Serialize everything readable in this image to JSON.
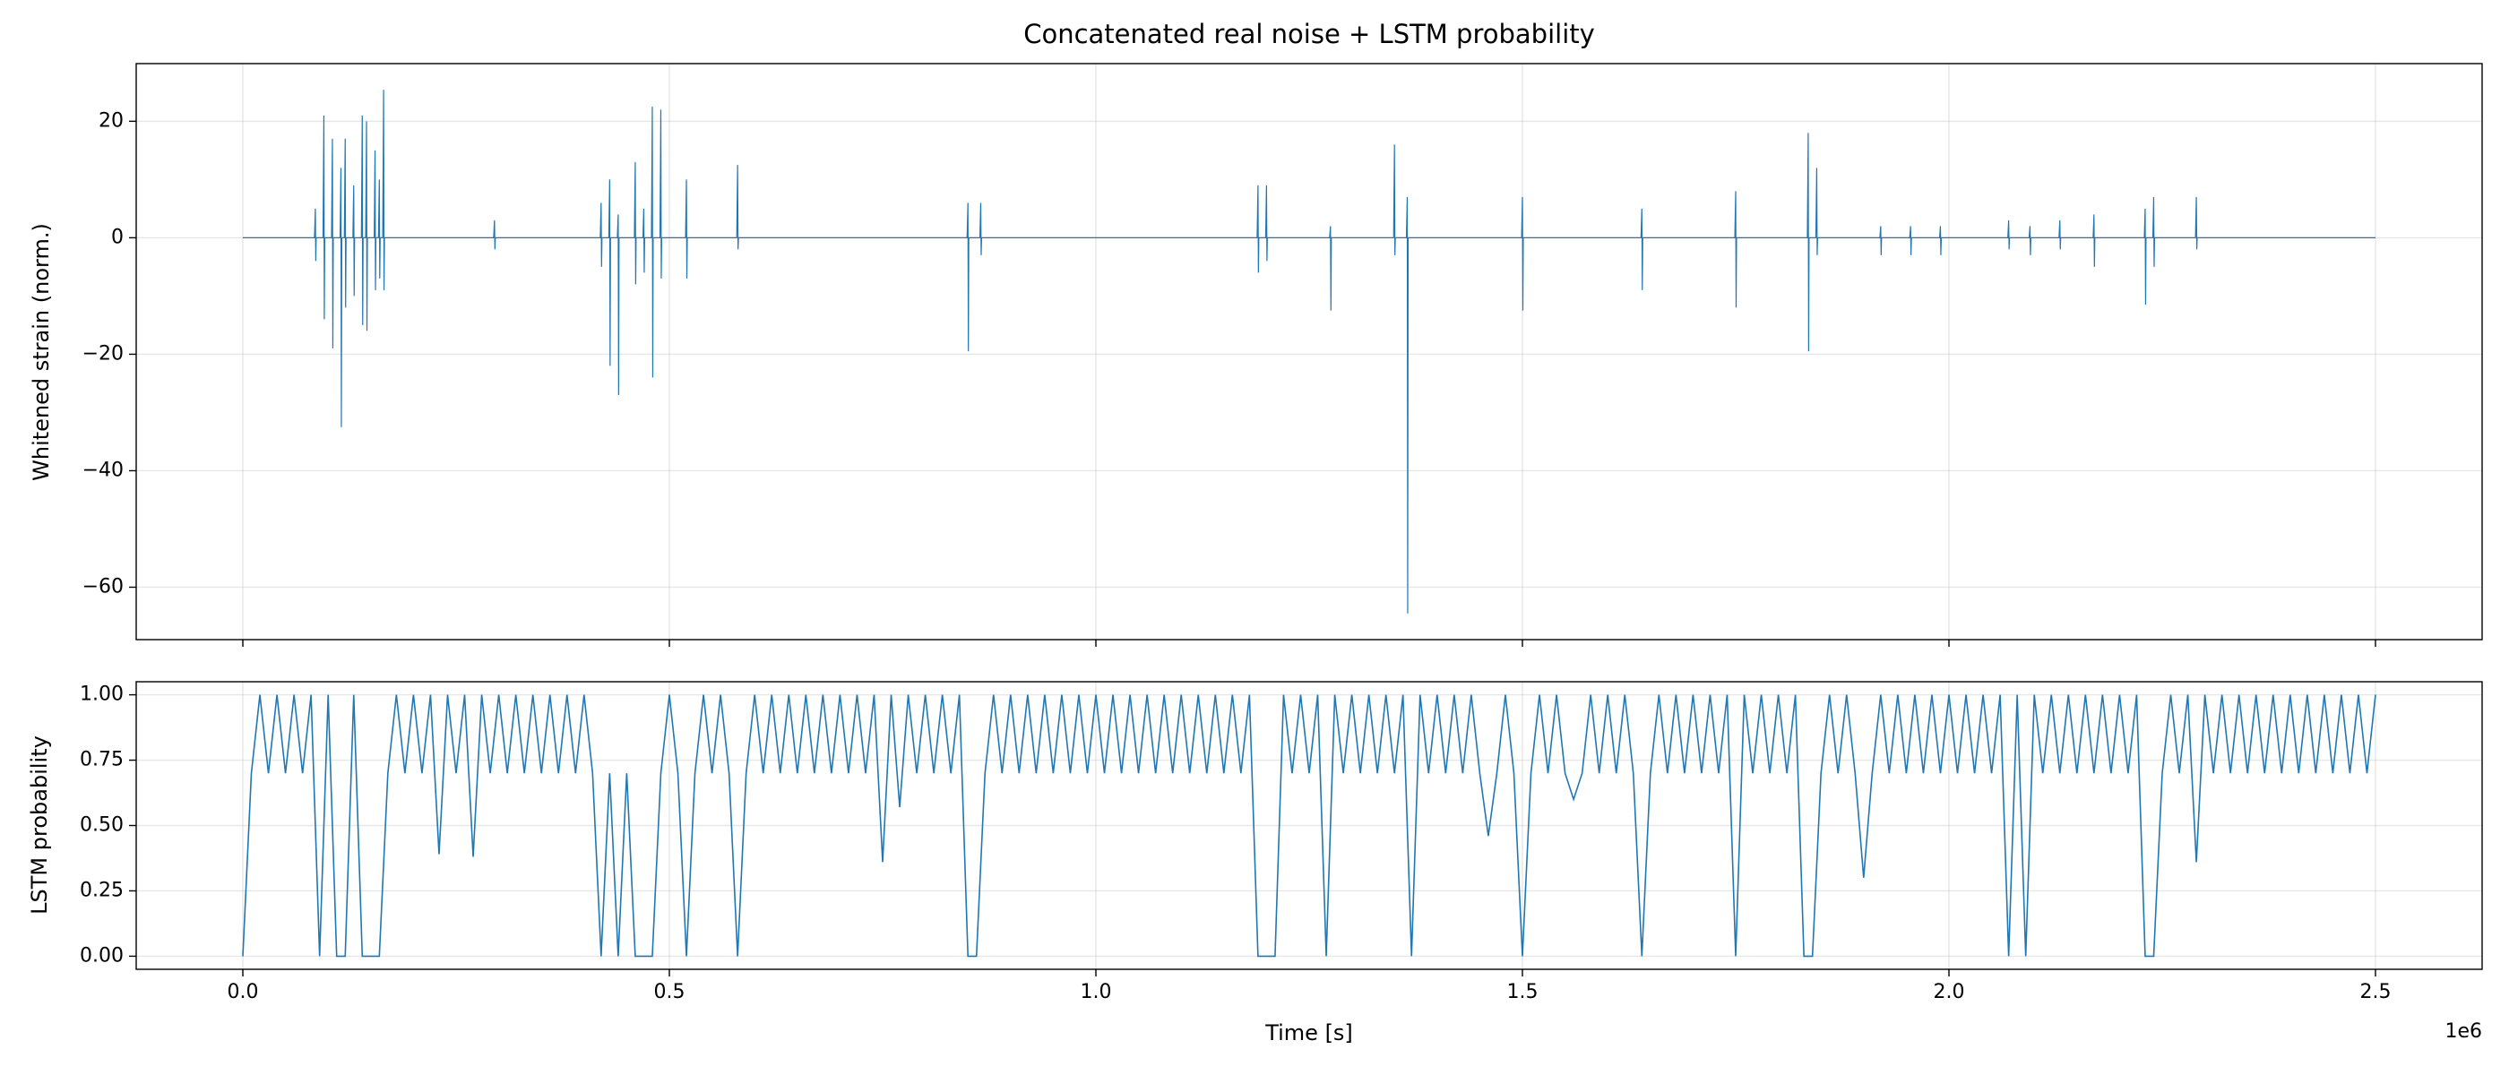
{
  "chart_data": [
    {
      "type": "line",
      "title": "Concatenated real noise + LSTM probability",
      "ylabel": "Whitened strain (norm.)",
      "xlim": [
        -125000,
        2625000
      ],
      "ylim": [
        -69,
        29.9
      ],
      "yticks": [
        {
          "value": -60,
          "label": "−60"
        },
        {
          "value": -40,
          "label": "−40"
        },
        {
          "value": -20,
          "label": "−20"
        },
        0,
        20
      ],
      "grid": true,
      "color": "#1f77b4",
      "x": [
        0,
        84000,
        85000,
        85500,
        86000,
        94000,
        95000,
        95500,
        96000,
        104000,
        105000,
        105500,
        106000,
        114000,
        115000,
        115500,
        116000,
        119000,
        120000,
        120500,
        121000,
        129000,
        130000,
        130500,
        131000,
        139000,
        140000,
        140500,
        141000,
        144000,
        145000,
        145500,
        146000,
        154000,
        155000,
        155500,
        156000,
        159000,
        160000,
        160500,
        161000,
        164000,
        165000,
        165500,
        166000,
        294000,
        295000,
        295500,
        296000,
        419000,
        420000,
        420500,
        421000,
        429000,
        430000,
        430500,
        431000,
        439000,
        440000,
        440500,
        441000,
        459000,
        460000,
        460500,
        461000,
        469000,
        470000,
        470500,
        471000,
        479000,
        480000,
        480500,
        481000,
        489000,
        490000,
        490500,
        491000,
        519000,
        520000,
        520500,
        521000,
        579000,
        580000,
        580500,
        581000,
        849000,
        850000,
        850500,
        851000,
        864000,
        865000,
        865500,
        866000,
        1189000,
        1190000,
        1190500,
        1191000,
        1199000,
        1200000,
        1200500,
        1201000,
        1274000,
        1275000,
        1275500,
        1276000,
        1349000,
        1350000,
        1350500,
        1351000,
        1364000,
        1365000,
        1365500,
        1366000,
        1499000,
        1500000,
        1500500,
        1501000,
        1639000,
        1640000,
        1640500,
        1641000,
        1749000,
        1750000,
        1750500,
        1751000,
        1834000,
        1835000,
        1835500,
        1836000,
        1844000,
        1845000,
        1845500,
        1846000,
        1919000,
        1920000,
        1920500,
        1921000,
        1954000,
        1955000,
        1955500,
        1956000,
        1989000,
        1990000,
        1990500,
        1991000,
        2069000,
        2070000,
        2070500,
        2071000,
        2094000,
        2095000,
        2095500,
        2096000,
        2129000,
        2130000,
        2130500,
        2131000,
        2169000,
        2170000,
        2170500,
        2171000,
        2229000,
        2230000,
        2230500,
        2231000,
        2239000,
        2240000,
        2240500,
        2241000,
        2289000,
        2290000,
        2290500,
        2291000,
        2500000
      ],
      "values": [
        0,
        0,
        5,
        -4,
        0,
        0,
        21,
        -14,
        0,
        0,
        17,
        -19,
        0,
        0,
        12,
        -32.5,
        0,
        0,
        17,
        -12,
        0,
        0,
        9,
        -10,
        0,
        0,
        21,
        -15,
        0,
        0,
        20,
        -16,
        0,
        0,
        15,
        -9,
        0,
        0,
        10,
        -7,
        0,
        0,
        25.4,
        -9,
        0,
        0,
        3,
        -2,
        0,
        0,
        6,
        -5,
        0,
        0,
        10,
        -22,
        0,
        0,
        4,
        -27,
        0,
        0,
        13,
        -8,
        0,
        0,
        5,
        -6,
        0,
        0,
        22.5,
        -24,
        0,
        0,
        22,
        -7,
        0,
        0,
        10,
        -7,
        0,
        0,
        12.5,
        -2,
        0,
        0,
        6,
        -19.5,
        0,
        0,
        6,
        -3,
        0,
        0,
        9,
        -6,
        0,
        0,
        9,
        -4,
        0,
        0,
        2,
        -12.5,
        0,
        0,
        16,
        -3,
        0,
        0,
        7,
        -64.5,
        0,
        0,
        7,
        -12.5,
        0,
        0,
        5,
        -9,
        0,
        0,
        8,
        -12,
        0,
        0,
        18,
        -19.5,
        0,
        0,
        12,
        -3,
        0,
        0,
        2,
        -3,
        0,
        0,
        2,
        -3,
        0,
        0,
        2,
        -3,
        0,
        0,
        3,
        -2,
        0,
        0,
        2,
        -3,
        0,
        0,
        3,
        -2,
        0,
        0,
        4,
        -5,
        0,
        0,
        5,
        -11.5,
        0,
        0,
        7,
        -5,
        0,
        0,
        7,
        -2,
        0,
        0
      ]
    },
    {
      "type": "line",
      "ylabel": "LSTM probability",
      "xlabel": "Time [s]",
      "x_offset_label": "1e6",
      "xlim": [
        -125000,
        2625000
      ],
      "ylim": [
        -0.05,
        1.05
      ],
      "xticks": [
        {
          "value": 0,
          "label": "0.0"
        },
        {
          "value": 500000,
          "label": "0.5"
        },
        {
          "value": 1000000,
          "label": "1.0"
        },
        {
          "value": 1500000,
          "label": "1.5"
        },
        {
          "value": 2000000,
          "label": "2.0"
        },
        {
          "value": 2500000,
          "label": "2.5"
        }
      ],
      "yticks": [
        {
          "value": 0,
          "label": "0.00"
        },
        {
          "value": 0.25,
          "label": "0.25"
        },
        {
          "value": 0.5,
          "label": "0.50"
        },
        {
          "value": 0.75,
          "label": "0.75"
        },
        {
          "value": 1,
          "label": "1.00"
        }
      ],
      "grid": true,
      "color": "#1f77b4",
      "x": [
        0,
        10000,
        20000,
        30000,
        40000,
        50000,
        60000,
        70000,
        80000,
        90000,
        100000,
        110000,
        120000,
        130000,
        140000,
        150000,
        160000,
        170000,
        180000,
        190000,
        200000,
        210000,
        220000,
        230000,
        240000,
        250000,
        260000,
        270000,
        280000,
        290000,
        300000,
        310000,
        320000,
        330000,
        340000,
        350000,
        360000,
        370000,
        380000,
        390000,
        400000,
        410000,
        420000,
        430000,
        440000,
        450000,
        460000,
        470000,
        480000,
        490000,
        500000,
        510000,
        520000,
        530000,
        540000,
        550000,
        560000,
        570000,
        580000,
        590000,
        600000,
        610000,
        620000,
        630000,
        640000,
        650000,
        660000,
        670000,
        680000,
        690000,
        700000,
        710000,
        720000,
        730000,
        740000,
        750000,
        760000,
        770000,
        780000,
        790000,
        800000,
        810000,
        820000,
        830000,
        840000,
        850000,
        860000,
        870000,
        880000,
        890000,
        900000,
        910000,
        920000,
        930000,
        940000,
        950000,
        960000,
        970000,
        980000,
        990000,
        1000000,
        1010000,
        1020000,
        1030000,
        1040000,
        1050000,
        1060000,
        1070000,
        1080000,
        1090000,
        1100000,
        1110000,
        1120000,
        1130000,
        1140000,
        1150000,
        1160000,
        1170000,
        1180000,
        1190000,
        1200000,
        1210000,
        1220000,
        1230000,
        1240000,
        1250000,
        1260000,
        1270000,
        1280000,
        1290000,
        1300000,
        1310000,
        1320000,
        1330000,
        1340000,
        1350000,
        1360000,
        1370000,
        1380000,
        1390000,
        1400000,
        1410000,
        1420000,
        1430000,
        1440000,
        1450000,
        1460000,
        1470000,
        1480000,
        1490000,
        1500000,
        1510000,
        1520000,
        1530000,
        1540000,
        1550000,
        1560000,
        1570000,
        1580000,
        1590000,
        1600000,
        1610000,
        1620000,
        1630000,
        1640000,
        1650000,
        1660000,
        1670000,
        1680000,
        1690000,
        1700000,
        1710000,
        1720000,
        1730000,
        1740000,
        1750000,
        1760000,
        1770000,
        1780000,
        1790000,
        1800000,
        1810000,
        1820000,
        1830000,
        1840000,
        1850000,
        1860000,
        1870000,
        1880000,
        1890000,
        1900000,
        1910000,
        1920000,
        1930000,
        1940000,
        1950000,
        1960000,
        1970000,
        1980000,
        1990000,
        2000000,
        2010000,
        2020000,
        2030000,
        2040000,
        2050000,
        2060000,
        2070000,
        2080000,
        2090000,
        2100000,
        2110000,
        2120000,
        2130000,
        2140000,
        2150000,
        2160000,
        2170000,
        2180000,
        2190000,
        2200000,
        2210000,
        2220000,
        2230000,
        2240000,
        2250000,
        2260000,
        2270000,
        2280000,
        2290000,
        2300000,
        2310000,
        2320000,
        2330000,
        2340000,
        2350000,
        2360000,
        2370000,
        2380000,
        2390000,
        2400000,
        2410000,
        2420000,
        2430000,
        2440000,
        2450000,
        2460000,
        2470000,
        2480000,
        2490000,
        2500000
      ],
      "values": [
        0,
        0.7,
        1,
        0.7,
        1,
        0.7,
        1,
        0.7,
        1,
        0,
        1,
        0,
        0,
        1,
        0,
        0,
        0,
        0.7,
        1,
        0.7,
        1,
        0.7,
        1,
        0.39,
        1,
        0.7,
        1,
        0.38,
        1,
        0.7,
        1,
        0.7,
        1,
        0.7,
        1,
        0.7,
        1,
        0.7,
        1,
        0.7,
        1,
        0.7,
        0,
        0.7,
        0,
        0.7,
        0,
        0,
        0,
        0.7,
        1,
        0.7,
        0,
        0.7,
        1,
        0.7,
        1,
        0.7,
        0,
        0.7,
        1,
        0.7,
        1,
        0.7,
        1,
        0.7,
        1,
        0.7,
        1,
        0.7,
        1,
        0.7,
        1,
        0.7,
        1,
        0.36,
        1,
        0.57,
        1,
        0.7,
        1,
        0.7,
        1,
        0.7,
        1,
        0,
        0,
        0.7,
        1,
        0.7,
        1,
        0.7,
        1,
        0.7,
        1,
        0.7,
        1,
        0.7,
        1,
        0.7,
        1,
        0.7,
        1,
        0.7,
        1,
        0.7,
        1,
        0.7,
        1,
        0.7,
        1,
        0.7,
        1,
        0.7,
        1,
        0.7,
        1,
        0.7,
        1,
        0,
        0,
        0,
        1,
        0.7,
        1,
        0.7,
        1,
        0,
        1,
        0.7,
        1,
        0.7,
        1,
        0.7,
        1,
        0.7,
        1,
        0,
        1,
        0.7,
        1,
        0.7,
        1,
        0.7,
        1,
        0.7,
        0.46,
        0.7,
        1,
        0.7,
        0,
        0.7,
        1,
        0.7,
        1,
        0.7,
        0.6,
        0.7,
        1,
        0.7,
        1,
        0.7,
        1,
        0.7,
        0,
        0.7,
        1,
        0.7,
        1,
        0.7,
        1,
        0.7,
        1,
        0.7,
        1,
        0,
        1,
        0.7,
        1,
        0.7,
        1,
        0.7,
        1,
        0,
        0,
        0.7,
        1,
        0.7,
        1,
        0.7,
        0.3,
        0.7,
        1,
        0.7,
        1,
        0.7,
        1,
        0.7,
        1,
        0.7,
        1,
        0.7,
        1,
        0.7,
        1,
        0.7,
        1,
        0,
        1,
        0,
        1,
        0.7,
        1,
        0.7,
        1,
        0.7,
        1,
        0.7,
        1,
        0.7,
        1,
        0.7,
        1,
        0,
        0,
        0.7,
        1,
        0.7,
        1,
        0.36,
        1,
        0.7,
        1,
        0.7,
        1,
        0.7,
        1,
        0.7,
        1,
        0.7,
        1,
        0.7,
        1,
        0.7,
        1,
        0.7,
        1,
        0.7,
        1,
        0.7,
        1
      ]
    }
  ]
}
